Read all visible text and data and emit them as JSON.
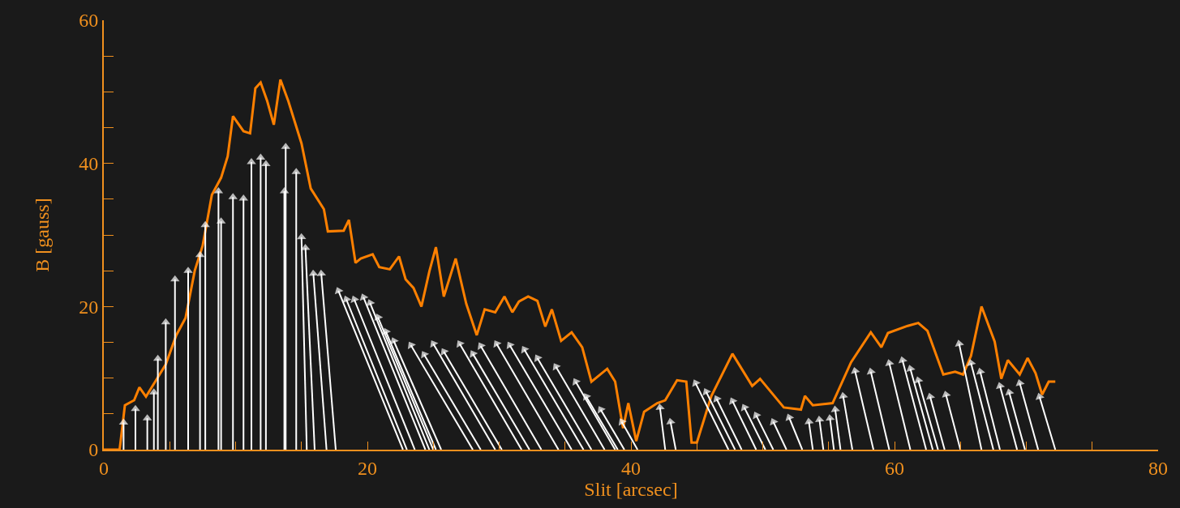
{
  "chart_data": {
    "type": "line",
    "xlabel": "Slit [arcsec]",
    "ylabel": "B [gauss]",
    "xlim": [
      0,
      80
    ],
    "ylim": [
      0,
      60
    ],
    "xticks": [
      0,
      {
        "value": 5,
        "label": null
      },
      {
        "value": 10,
        "label": null
      },
      {
        "value": 15,
        "label": null
      },
      20,
      {
        "value": 25,
        "label": null
      },
      {
        "value": 30,
        "label": null
      },
      {
        "value": 35,
        "label": null
      },
      40,
      {
        "value": 45,
        "label": null
      },
      {
        "value": 50,
        "label": null
      },
      {
        "value": 55,
        "label": null
      },
      60,
      {
        "value": 65,
        "label": null
      },
      {
        "value": 70,
        "label": null
      },
      {
        "value": 75,
        "label": null
      },
      80
    ],
    "yticks": [
      0,
      {
        "value": 5,
        "label": null
      },
      {
        "value": 10,
        "label": null
      },
      {
        "value": 15,
        "label": null
      },
      20,
      {
        "value": 25,
        "label": null
      },
      {
        "value": 30,
        "label": null
      },
      {
        "value": 35,
        "label": null
      },
      40,
      {
        "value": 45,
        "label": null
      },
      {
        "value": 50,
        "label": null
      },
      {
        "value": 55,
        "label": null
      },
      60
    ],
    "grid": false,
    "line_style": "solid",
    "series": [
      {
        "color": "#ff8000",
        "marker": "none",
        "x": [
          0,
          1.2,
          1.6,
          2.3,
          2.7,
          3.2,
          3.9,
          4.7,
          5.5,
          6.2,
          6.9,
          7.5,
          8.2,
          8.9,
          9.4,
          9.8,
          10.6,
          11.1,
          11.5,
          11.9,
          12.4,
          12.9,
          13.4,
          14.0,
          15.0,
          15.7,
          16.7,
          17.0,
          18.2,
          18.6,
          19.1,
          19.5,
          20.4,
          20.9,
          21.7,
          22.4,
          22.9,
          23.5,
          24.1,
          24.7,
          25.2,
          25.8,
          26.7,
          27.5,
          28.3,
          28.9,
          29.7,
          30.4,
          31.0,
          31.5,
          32.2,
          32.9,
          33.5,
          34.0,
          34.7,
          35.5,
          36.3,
          37.0,
          38.2,
          38.8,
          39.4,
          39.8,
          40.4,
          41.0,
          42.0,
          42.6,
          43.5,
          44.2,
          44.6,
          45.0,
          46.1,
          47.7,
          49.2,
          49.8,
          51.6,
          52.9,
          53.2,
          53.8,
          55.3,
          56.7,
          58.2,
          59.0,
          59.5,
          61.0,
          61.8,
          62.5,
          63.7,
          64.6,
          65.2,
          65.8,
          66.6,
          67.6,
          68.1,
          68.6,
          69.5,
          70.1,
          70.7,
          71.2,
          71.7,
          72.2
        ],
        "values": [
          0,
          0,
          6.2,
          6.9,
          8.7,
          7.4,
          9.5,
          11.9,
          16,
          18.4,
          25,
          28.5,
          35.6,
          38,
          41,
          46.6,
          44.5,
          44.2,
          50.5,
          51.3,
          48.7,
          45.4,
          51.7,
          48.7,
          42.8,
          36.5,
          33.6,
          30.5,
          30.6,
          32.1,
          26.1,
          26.7,
          27.3,
          25.5,
          25.2,
          27,
          23.8,
          22.6,
          20,
          24.9,
          28.3,
          21.4,
          26.7,
          20.4,
          16,
          19.6,
          19.2,
          21.4,
          19.2,
          20.7,
          21.4,
          20.8,
          17.2,
          19.6,
          15.2,
          16.4,
          14.3,
          9.5,
          11.3,
          9.5,
          3,
          6.5,
          1.2,
          5.3,
          6.5,
          6.9,
          9.7,
          9.5,
          1,
          1,
          7.5,
          13.4,
          8.9,
          9.9,
          5.9,
          5.6,
          7.5,
          6.2,
          6.5,
          12.2,
          16.4,
          14.3,
          16.3,
          17.3,
          17.7,
          16.6,
          10.5,
          10.9,
          10.5,
          13.1,
          20,
          15.1,
          9.9,
          12.5,
          10.5,
          12.8,
          10.7,
          7.7,
          9.5,
          9.5
        ]
      },
      {
        "color": "#ffffff",
        "marker": "triangle",
        "x": [
          1.5,
          1.5
        ],
        "values": [
          0,
          3.8
        ]
      },
      {
        "color": "#ffffff",
        "marker": "triangle",
        "x": [
          2.4,
          2.4
        ],
        "values": [
          0,
          5.7
        ]
      },
      {
        "color": "#ffffff",
        "marker": "triangle",
        "x": [
          3.3,
          3.3
        ],
        "values": [
          0,
          4.4
        ]
      },
      {
        "color": "#ffffff",
        "marker": "triangle",
        "x": [
          3.8,
          3.8
        ],
        "values": [
          0,
          8
        ]
      },
      {
        "color": "#ffffff",
        "marker": "triangle",
        "x": [
          4.1,
          4.1
        ],
        "values": [
          0,
          12.7
        ]
      },
      {
        "color": "#ffffff",
        "marker": "triangle",
        "x": [
          4.7,
          4.7
        ],
        "values": [
          0,
          17.8
        ]
      },
      {
        "color": "#ffffff",
        "marker": "triangle",
        "x": [
          5.4,
          5.4
        ],
        "values": [
          0,
          23.8
        ]
      },
      {
        "color": "#ffffff",
        "marker": "triangle",
        "x": [
          6.4,
          6.4
        ],
        "values": [
          0,
          25
        ]
      },
      {
        "color": "#ffffff",
        "marker": "triangle",
        "x": [
          7.3,
          7.3
        ],
        "values": [
          0,
          27.2
        ]
      },
      {
        "color": "#ffffff",
        "marker": "triangle",
        "x": [
          7.7,
          7.7
        ],
        "values": [
          0,
          31.4
        ]
      },
      {
        "color": "#ffffff",
        "marker": "triangle",
        "x": [
          8.7,
          8.7
        ],
        "values": [
          0,
          36.1
        ]
      },
      {
        "color": "#ffffff",
        "marker": "triangle",
        "x": [
          8.9,
          8.9
        ],
        "values": [
          0,
          31.9
        ]
      },
      {
        "color": "#ffffff",
        "marker": "triangle",
        "x": [
          9.8,
          9.8
        ],
        "values": [
          0,
          35.3
        ]
      },
      {
        "color": "#ffffff",
        "marker": "triangle",
        "x": [
          10.6,
          10.6
        ],
        "values": [
          0,
          35.1
        ]
      },
      {
        "color": "#ffffff",
        "marker": "triangle",
        "x": [
          11.2,
          11.2
        ],
        "values": [
          0,
          40.2
        ]
      },
      {
        "color": "#ffffff",
        "marker": "triangle",
        "x": [
          11.9,
          11.9
        ],
        "values": [
          0,
          40.8
        ]
      },
      {
        "color": "#ffffff",
        "marker": "triangle",
        "x": [
          12.3,
          12.3
        ],
        "values": [
          0,
          39.9
        ]
      },
      {
        "color": "#ffffff",
        "marker": "triangle",
        "x": [
          13.8,
          13.8
        ],
        "values": [
          0,
          42.3
        ]
      },
      {
        "color": "#ffffff",
        "marker": "triangle",
        "x": [
          13.7,
          13.7
        ],
        "values": [
          0,
          36.1
        ]
      },
      {
        "color": "#ffffff",
        "marker": "triangle",
        "x": [
          14.6,
          14.6
        ],
        "values": [
          0,
          38.8
        ]
      },
      {
        "color": "#ffffff",
        "marker": "triangle",
        "x": [
          15.4,
          15.0
        ],
        "values": [
          0,
          29.7
        ]
      },
      {
        "color": "#ffffff",
        "marker": "triangle",
        "x": [
          16.0,
          15.3
        ],
        "values": [
          0,
          28.2
        ]
      },
      {
        "color": "#ffffff",
        "marker": "triangle",
        "x": [
          16.9,
          15.9
        ],
        "values": [
          0,
          24.6
        ]
      },
      {
        "color": "#ffffff",
        "marker": "triangle",
        "x": [
          17.6,
          16.5
        ],
        "values": [
          0,
          24.6
        ]
      },
      {
        "color": "#ffffff",
        "marker": "triangle",
        "x": [
          22.7,
          17.8
        ],
        "values": [
          0,
          22.2
        ]
      },
      {
        "color": "#ffffff",
        "marker": "triangle",
        "x": [
          23.0,
          18.4
        ],
        "values": [
          0,
          21
        ]
      },
      {
        "color": "#ffffff",
        "marker": "triangle",
        "x": [
          23.6,
          19.0
        ],
        "values": [
          0,
          21
        ]
      },
      {
        "color": "#ffffff",
        "marker": "triangle",
        "x": [
          24.4,
          19.7
        ],
        "values": [
          0,
          21.3
        ]
      },
      {
        "color": "#ffffff",
        "marker": "triangle",
        "x": [
          24.7,
          20.2
        ],
        "values": [
          0,
          20.5
        ]
      },
      {
        "color": "#ffffff",
        "marker": "triangle",
        "x": [
          25.0,
          20.8
        ],
        "values": [
          0,
          18.5
        ]
      },
      {
        "color": "#ffffff",
        "marker": "triangle",
        "x": [
          25.2,
          21.4
        ],
        "values": [
          0,
          16.5
        ]
      },
      {
        "color": "#ffffff",
        "marker": "triangle",
        "x": [
          25.6,
          22.0
        ],
        "values": [
          0,
          15.2
        ]
      },
      {
        "color": "#ffffff",
        "marker": "triangle",
        "x": [
          28.0,
          23.3
        ],
        "values": [
          0,
          14.6
        ]
      },
      {
        "color": "#ffffff",
        "marker": "triangle",
        "x": [
          28.6,
          24.3
        ],
        "values": [
          0,
          13.3
        ]
      },
      {
        "color": "#ffffff",
        "marker": "triangle",
        "x": [
          29.7,
          25.0
        ],
        "values": [
          0,
          14.8
        ]
      },
      {
        "color": "#ffffff",
        "marker": "triangle",
        "x": [
          30.2,
          25.8
        ],
        "values": [
          0,
          13.7
        ]
      },
      {
        "color": "#ffffff",
        "marker": "triangle",
        "x": [
          31.7,
          27.0
        ],
        "values": [
          0,
          14.8
        ]
      },
      {
        "color": "#ffffff",
        "marker": "triangle",
        "x": [
          32.3,
          28.0
        ],
        "values": [
          0,
          13.4
        ]
      },
      {
        "color": "#ffffff",
        "marker": "triangle",
        "x": [
          33.2,
          28.6
        ],
        "values": [
          0,
          14.5
        ]
      },
      {
        "color": "#ffffff",
        "marker": "triangle",
        "x": [
          34.5,
          29.8
        ],
        "values": [
          0,
          14.8
        ]
      },
      {
        "color": "#ffffff",
        "marker": "triangle",
        "x": [
          35.5,
          30.8
        ],
        "values": [
          0,
          14.6
        ]
      },
      {
        "color": "#ffffff",
        "marker": "triangle",
        "x": [
          36.4,
          31.9
        ],
        "values": [
          0,
          14
        ]
      },
      {
        "color": "#ffffff",
        "marker": "triangle",
        "x": [
          37.0,
          32.9
        ],
        "values": [
          0,
          12.8
        ]
      },
      {
        "color": "#ffffff",
        "marker": "triangle",
        "x": [
          38.0,
          34.3
        ],
        "values": [
          0,
          11.6
        ]
      },
      {
        "color": "#ffffff",
        "marker": "triangle",
        "x": [
          38.8,
          35.8
        ],
        "values": [
          0,
          9.5
        ]
      },
      {
        "color": "#ffffff",
        "marker": "triangle",
        "x": [
          39.0,
          36.6
        ],
        "values": [
          0,
          7.4
        ]
      },
      {
        "color": "#ffffff",
        "marker": "triangle",
        "x": [
          39.5,
          37.7
        ],
        "values": [
          0,
          5.6
        ]
      },
      {
        "color": "#ffffff",
        "marker": "triangle",
        "x": [
          40.5,
          39.3
        ],
        "values": [
          0,
          3.9
        ]
      },
      {
        "color": "#ffffff",
        "marker": "triangle",
        "x": [
          42.6,
          42.2
        ],
        "values": [
          0,
          5.9
        ]
      },
      {
        "color": "#ffffff",
        "marker": "triangle",
        "x": [
          43.4,
          43.0
        ],
        "values": [
          0,
          3.9
        ]
      },
      {
        "color": "#ffffff",
        "marker": "triangle",
        "x": [
          47.4,
          44.9
        ],
        "values": [
          0,
          9.3
        ]
      },
      {
        "color": "#ffffff",
        "marker": "triangle",
        "x": [
          47.9,
          45.7
        ],
        "values": [
          0,
          8.1
        ]
      },
      {
        "color": "#ffffff",
        "marker": "triangle",
        "x": [
          48.4,
          46.5
        ],
        "values": [
          0,
          7.1
        ]
      },
      {
        "color": "#ffffff",
        "marker": "triangle",
        "x": [
          49.5,
          47.7
        ],
        "values": [
          0,
          6.8
        ]
      },
      {
        "color": "#ffffff",
        "marker": "triangle",
        "x": [
          50.2,
          48.6
        ],
        "values": [
          0,
          5.9
        ]
      },
      {
        "color": "#ffffff",
        "marker": "triangle",
        "x": [
          50.8,
          49.5
        ],
        "values": [
          0,
          4.8
        ]
      },
      {
        "color": "#ffffff",
        "marker": "triangle",
        "x": [
          51.8,
          50.8
        ],
        "values": [
          0,
          3.9
        ]
      },
      {
        "color": "#ffffff",
        "marker": "triangle",
        "x": [
          53.0,
          52.0
        ],
        "values": [
          0,
          4.5
        ]
      },
      {
        "color": "#ffffff",
        "marker": "triangle",
        "x": [
          53.8,
          53.5
        ],
        "values": [
          0,
          3.9
        ]
      },
      {
        "color": "#ffffff",
        "marker": "triangle",
        "x": [
          54.6,
          54.3
        ],
        "values": [
          0,
          4.2
        ]
      },
      {
        "color": "#ffffff",
        "marker": "triangle",
        "x": [
          55.4,
          55.1
        ],
        "values": [
          0,
          4.4
        ]
      },
      {
        "color": "#ffffff",
        "marker": "triangle",
        "x": [
          55.9,
          55.5
        ],
        "values": [
          0,
          5.6
        ]
      },
      {
        "color": "#ffffff",
        "marker": "triangle",
        "x": [
          56.8,
          56.1
        ],
        "values": [
          0,
          7.5
        ]
      },
      {
        "color": "#ffffff",
        "marker": "triangle",
        "x": [
          58.4,
          57.0
        ],
        "values": [
          0,
          11
        ]
      },
      {
        "color": "#ffffff",
        "marker": "triangle",
        "x": [
          59.6,
          58.2
        ],
        "values": [
          0,
          10.9
        ]
      },
      {
        "color": "#ffffff",
        "marker": "triangle",
        "x": [
          61.2,
          59.6
        ],
        "values": [
          0,
          12.1
        ]
      },
      {
        "color": "#ffffff",
        "marker": "triangle",
        "x": [
          62.4,
          60.6
        ],
        "values": [
          0,
          12.5
        ]
      },
      {
        "color": "#ffffff",
        "marker": "triangle",
        "x": [
          62.9,
          61.2
        ],
        "values": [
          0,
          11.3
        ]
      },
      {
        "color": "#ffffff",
        "marker": "triangle",
        "x": [
          63.3,
          61.8
        ],
        "values": [
          0,
          9.7
        ]
      },
      {
        "color": "#ffffff",
        "marker": "triangle",
        "x": [
          63.8,
          62.7
        ],
        "values": [
          0,
          7.4
        ]
      },
      {
        "color": "#ffffff",
        "marker": "triangle",
        "x": [
          65.0,
          63.9
        ],
        "values": [
          0,
          7.7
        ]
      },
      {
        "color": "#ffffff",
        "marker": "triangle",
        "x": [
          66.6,
          64.9
        ],
        "values": [
          0,
          14.8
        ]
      },
      {
        "color": "#ffffff",
        "marker": "triangle",
        "x": [
          67.5,
          65.8
        ],
        "values": [
          0,
          12.1
        ]
      },
      {
        "color": "#ffffff",
        "marker": "triangle",
        "x": [
          68.0,
          66.5
        ],
        "values": [
          0,
          10.9
        ]
      },
      {
        "color": "#ffffff",
        "marker": "triangle",
        "x": [
          69.3,
          68.0
        ],
        "values": [
          0,
          8.9
        ]
      },
      {
        "color": "#ffffff",
        "marker": "triangle",
        "x": [
          69.9,
          68.7
        ],
        "values": [
          0,
          8
        ]
      },
      {
        "color": "#ffffff",
        "marker": "triangle",
        "x": [
          70.9,
          69.5
        ],
        "values": [
          0,
          9.3
        ]
      },
      {
        "color": "#ffffff",
        "marker": "triangle",
        "x": [
          72.2,
          71.0
        ],
        "values": [
          0,
          7.4
        ]
      }
    ]
  }
}
